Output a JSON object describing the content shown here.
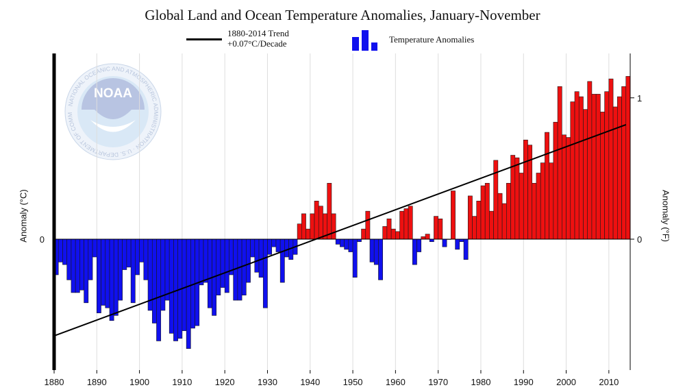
{
  "title": "Global Land and Ocean Temperature Anomalies, January-November",
  "legend": {
    "trend_label_line1": "1880-2014 Trend",
    "trend_label_line2": "+0.07°C/Decade",
    "anomalies_label": "Temperature Anomalies"
  },
  "logo": {
    "text": "NOAA",
    "ring_text": "NATIONAL OCEANIC AND ATMOSPHERIC ADMINISTRATION · U.S. DEPARTMENT OF COMMERCE"
  },
  "colors": {
    "negative": "#1010ee",
    "positive": "#ee1010",
    "trend": "#000000",
    "grid": "#dddddd"
  },
  "chart_data": {
    "type": "bar",
    "title": "Global Land and Ocean Temperature Anomalies, January-November",
    "ylabel": "Anomaly (°C)",
    "ylabel_right": "Anomaly (°F)",
    "x_ticks": [
      "1880",
      "1890",
      "1900",
      "1910",
      "1920",
      "1930",
      "1940",
      "1950",
      "1960",
      "1970",
      "1980",
      "1990",
      "2000",
      "2010"
    ],
    "y_ticks_left": [
      "0"
    ],
    "y_ticks_right": [
      "0",
      "1"
    ],
    "xlim": [
      1880,
      2014
    ],
    "ylim": [
      -0.55,
      0.7
    ],
    "grid": "vertical",
    "trend": {
      "label": "1880-2014 Trend",
      "rate": "+0.07°C/Decade",
      "start": [
        1880,
        -0.38
      ],
      "end": [
        2014,
        0.45
      ]
    },
    "series": [
      {
        "name": "Temperature Anomalies",
        "x": [
          1880,
          1881,
          1882,
          1883,
          1884,
          1885,
          1886,
          1887,
          1888,
          1889,
          1890,
          1891,
          1892,
          1893,
          1894,
          1895,
          1896,
          1897,
          1898,
          1899,
          1900,
          1901,
          1902,
          1903,
          1904,
          1905,
          1906,
          1907,
          1908,
          1909,
          1910,
          1911,
          1912,
          1913,
          1914,
          1915,
          1916,
          1917,
          1918,
          1919,
          1920,
          1921,
          1922,
          1923,
          1924,
          1925,
          1926,
          1927,
          1928,
          1929,
          1930,
          1931,
          1932,
          1933,
          1934,
          1935,
          1936,
          1937,
          1938,
          1939,
          1940,
          1941,
          1942,
          1943,
          1944,
          1945,
          1946,
          1947,
          1948,
          1949,
          1950,
          1951,
          1952,
          1953,
          1954,
          1955,
          1956,
          1957,
          1958,
          1959,
          1960,
          1961,
          1962,
          1963,
          1964,
          1965,
          1966,
          1967,
          1968,
          1969,
          1970,
          1971,
          1972,
          1973,
          1974,
          1975,
          1976,
          1977,
          1978,
          1979,
          1980,
          1981,
          1982,
          1983,
          1984,
          1985,
          1986,
          1987,
          1988,
          1989,
          1990,
          1991,
          1992,
          1993,
          1994,
          1995,
          1996,
          1997,
          1998,
          1999,
          2000,
          2001,
          2002,
          2003,
          2004,
          2005,
          2006,
          2007,
          2008,
          2009,
          2010,
          2011,
          2012,
          2013,
          2014
        ],
        "values": [
          -0.14,
          -0.09,
          -0.1,
          -0.16,
          -0.21,
          -0.21,
          -0.2,
          -0.25,
          -0.16,
          -0.07,
          -0.29,
          -0.26,
          -0.27,
          -0.32,
          -0.3,
          -0.24,
          -0.12,
          -0.11,
          -0.25,
          -0.14,
          -0.09,
          -0.16,
          -0.28,
          -0.33,
          -0.4,
          -0.28,
          -0.24,
          -0.37,
          -0.4,
          -0.39,
          -0.36,
          -0.43,
          -0.35,
          -0.34,
          -0.18,
          -0.17,
          -0.27,
          -0.3,
          -0.22,
          -0.19,
          -0.21,
          -0.14,
          -0.24,
          -0.24,
          -0.22,
          -0.17,
          -0.07,
          -0.13,
          -0.15,
          -0.27,
          -0.06,
          -0.03,
          -0.05,
          -0.17,
          -0.07,
          -0.08,
          -0.06,
          0.06,
          0.1,
          0.04,
          0.1,
          0.15,
          0.13,
          0.1,
          0.22,
          0.1,
          -0.02,
          -0.03,
          -0.04,
          -0.05,
          -0.15,
          -0.01,
          0.04,
          0.11,
          -0.09,
          -0.1,
          -0.16,
          0.05,
          0.08,
          0.04,
          0.03,
          0.11,
          0.12,
          0.13,
          -0.1,
          -0.05,
          0.01,
          0.02,
          -0.01,
          0.09,
          0.08,
          -0.03,
          0.0,
          0.19,
          -0.04,
          -0.01,
          -0.08,
          0.17,
          0.09,
          0.15,
          0.21,
          0.22,
          0.11,
          0.31,
          0.18,
          0.14,
          0.22,
          0.33,
          0.32,
          0.26,
          0.39,
          0.37,
          0.22,
          0.26,
          0.3,
          0.42,
          0.3,
          0.46,
          0.6,
          0.41,
          0.4,
          0.54,
          0.58,
          0.56,
          0.51,
          0.62,
          0.57,
          0.57,
          0.5,
          0.58,
          0.63,
          0.52,
          0.56,
          0.6,
          0.64
        ]
      }
    ]
  }
}
